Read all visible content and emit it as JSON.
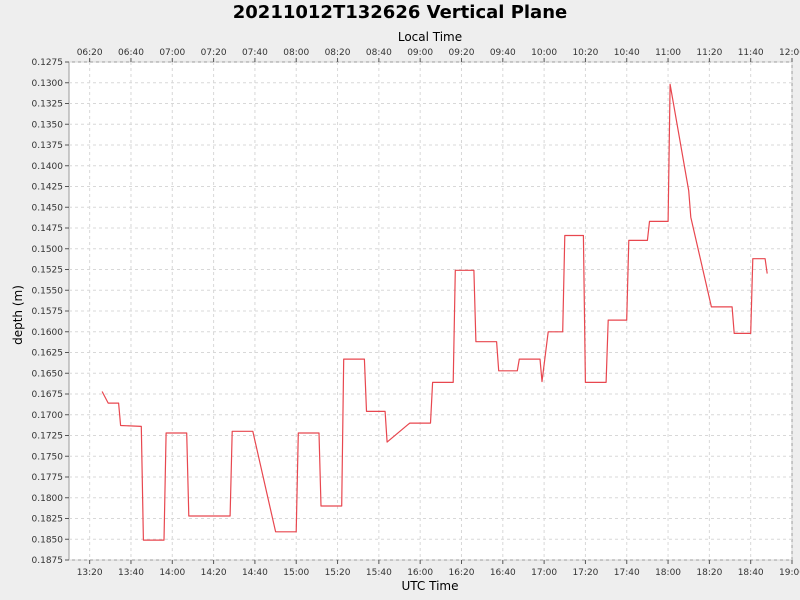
{
  "chart_data": {
    "type": "line",
    "title": "20211012T132626 Vertical Plane",
    "xlabel": "UTC Time",
    "x2label": "Local Time",
    "ylabel": "depth (m)",
    "y_inverted": true,
    "ylim": [
      0.1275,
      0.1875
    ],
    "xlim": [
      "13:10",
      "19:00"
    ],
    "x_ticks": [
      "13:20",
      "13:40",
      "14:00",
      "14:20",
      "14:40",
      "15:00",
      "15:20",
      "15:40",
      "16:00",
      "16:20",
      "16:40",
      "17:00",
      "17:20",
      "17:40",
      "18:00",
      "18:20",
      "18:40",
      "19:00"
    ],
    "x2_ticks": [
      "06:20",
      "06:40",
      "07:00",
      "07:20",
      "07:40",
      "08:00",
      "08:20",
      "08:40",
      "09:00",
      "09:20",
      "09:40",
      "10:00",
      "10:20",
      "10:40",
      "11:00",
      "11:20",
      "11:40",
      "12:00"
    ],
    "y_ticks": [
      "0.1275",
      "0.1300",
      "0.1325",
      "0.1350",
      "0.1375",
      "0.1400",
      "0.1425",
      "0.1450",
      "0.1475",
      "0.1500",
      "0.1525",
      "0.1550",
      "0.1575",
      "0.1600",
      "0.1625",
      "0.1650",
      "0.1675",
      "0.1700",
      "0.1725",
      "0.1750",
      "0.1775",
      "0.1800",
      "0.1825",
      "0.1850",
      "0.1875"
    ],
    "grid": true,
    "series": [
      {
        "color": "#e8474f",
        "x": [
          "13:26",
          "13:29",
          "13:34",
          "13:35",
          "13:45",
          "13:46",
          "13:56",
          "13:57",
          "14:07",
          "14:08",
          "14:28",
          "14:29",
          "14:39",
          "14:50",
          "15:00",
          "15:01",
          "15:11",
          "15:12",
          "15:22",
          "15:23",
          "15:33",
          "15:34",
          "15:43",
          "15:44",
          "15:54",
          "15:55",
          "16:05",
          "16:06",
          "16:16",
          "16:17",
          "16:26",
          "16:27",
          "16:37",
          "16:38",
          "16:47",
          "16:48",
          "16:58",
          "16:59",
          "17:02",
          "17:03",
          "17:09",
          "17:10",
          "17:19",
          "17:20",
          "17:30",
          "17:31",
          "17:40",
          "17:41",
          "17:50",
          "17:51",
          "18:00",
          "18:01",
          "18:10",
          "18:11",
          "18:21",
          "18:22",
          "18:31",
          "18:32",
          "18:40",
          "18:41",
          "18:47",
          "18:48"
        ],
        "y": [
          0.1672,
          0.1686,
          0.1686,
          0.1713,
          0.1714,
          0.1851,
          0.1851,
          0.1722,
          0.1722,
          0.1822,
          0.1822,
          0.172,
          0.172,
          0.1841,
          0.1841,
          0.1722,
          0.1722,
          0.181,
          0.181,
          0.1633,
          0.1633,
          0.1696,
          0.1696,
          0.1733,
          0.1712,
          0.171,
          0.171,
          0.1661,
          0.1661,
          0.1526,
          0.1526,
          0.1612,
          0.1612,
          0.1647,
          0.1647,
          0.1633,
          0.1633,
          0.166,
          0.16,
          0.16,
          0.16,
          0.1484,
          0.1484,
          0.1661,
          0.1661,
          0.1586,
          0.1586,
          0.149,
          0.149,
          0.1467,
          0.1467,
          0.1302,
          0.143,
          0.1462,
          0.157,
          0.157,
          0.157,
          0.1602,
          0.1602,
          0.1512,
          0.1512,
          0.153
        ]
      }
    ]
  }
}
